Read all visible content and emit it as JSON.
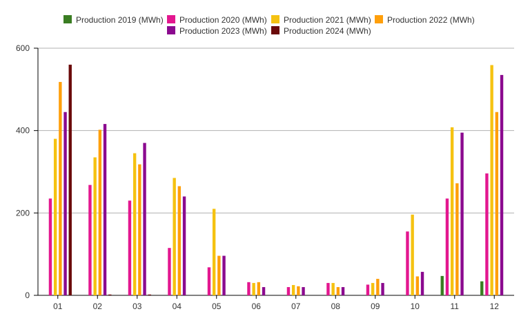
{
  "chart_data": {
    "type": "bar",
    "categories": [
      "01",
      "02",
      "03",
      "04",
      "05",
      "06",
      "07",
      "08",
      "09",
      "10",
      "11",
      "12"
    ],
    "series": [
      {
        "name": "Production 2019 (MWh)",
        "color": "#3a7d22",
        "values": [
          0,
          0,
          0,
          0,
          0,
          0,
          0,
          0,
          0,
          0,
          47,
          34
        ]
      },
      {
        "name": "Production 2020 (MWh)",
        "color": "#e3178f",
        "values": [
          235,
          268,
          230,
          115,
          68,
          32,
          20,
          30,
          26,
          155,
          235,
          296
        ]
      },
      {
        "name": "Production 2021 (MWh)",
        "color": "#f5c211",
        "values": [
          380,
          335,
          345,
          285,
          210,
          30,
          25,
          30,
          30,
          196,
          408,
          559
        ]
      },
      {
        "name": "Production 2022 (MWh)",
        "color": "#ff9f0a",
        "values": [
          518,
          402,
          318,
          265,
          96,
          32,
          22,
          20,
          40,
          46,
          272,
          445
        ]
      },
      {
        "name": "Production 2023 (MWh)",
        "color": "#8b0a8f",
        "values": [
          445,
          416,
          370,
          240,
          96,
          20,
          20,
          20,
          30,
          57,
          395,
          535
        ]
      },
      {
        "name": "Production 2024 (MWh)",
        "color": "#6b0a0a",
        "values": [
          560,
          2,
          2,
          0,
          0,
          0,
          0,
          0,
          0,
          0,
          0,
          0
        ]
      }
    ],
    "y_ticks": [
      "0",
      "200",
      "400",
      "600"
    ],
    "ylim": [
      0,
      600
    ],
    "grid": true,
    "legend_position": "top"
  }
}
